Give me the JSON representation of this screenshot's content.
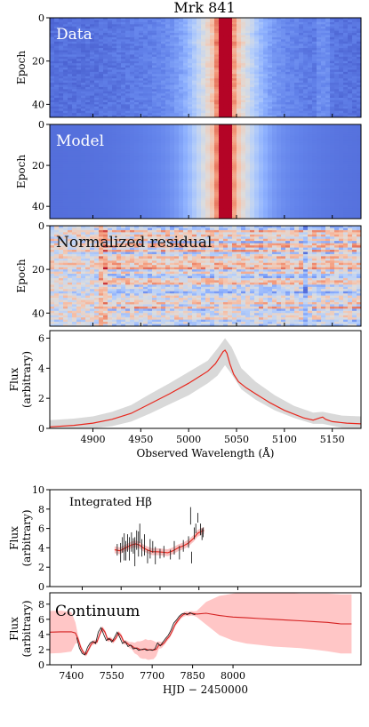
{
  "figure": {
    "title": "Mrk 841"
  },
  "chart_data": [
    {
      "type": "heatmap",
      "label": "Data",
      "ylabel": "Epoch",
      "yticks": [
        0,
        20,
        40
      ],
      "ylim": [
        0,
        46
      ],
      "xlim": [
        4855,
        5180
      ],
      "colormap": "coolwarm",
      "line_center": 5038
    },
    {
      "type": "heatmap",
      "label": "Model",
      "ylabel": "Epoch",
      "yticks": [
        0,
        20,
        40
      ],
      "ylim": [
        0,
        46
      ],
      "xlim": [
        4855,
        5180
      ],
      "colormap": "coolwarm",
      "line_center": 5038
    },
    {
      "type": "heatmap",
      "label": "Normalized residual",
      "ylabel": "Epoch",
      "yticks": [
        0,
        20,
        40
      ],
      "ylim": [
        0,
        46
      ],
      "xlim": [
        4855,
        5180
      ],
      "colormap": "coolwarm"
    },
    {
      "type": "line",
      "ylabel_line1": "Flux",
      "ylabel_line2": "(arbitrary)",
      "xlabel": "Observed Wavelength (Å)",
      "xlim": [
        4855,
        5180
      ],
      "ylim": [
        0,
        6.5
      ],
      "xticks": [
        4900,
        4950,
        5000,
        5050,
        5100,
        5150
      ],
      "yticks": [
        0,
        2,
        4,
        6
      ],
      "mean_spectrum": {
        "x": [
          4855,
          4880,
          4900,
          4920,
          4940,
          4960,
          4980,
          5000,
          5010,
          5020,
          5028,
          5033,
          5036,
          5038,
          5040,
          5043,
          5047,
          5052,
          5060,
          5070,
          5085,
          5100,
          5120,
          5130,
          5137,
          5140,
          5143,
          5150,
          5165,
          5180
        ],
        "y": [
          0.1,
          0.2,
          0.35,
          0.6,
          1.0,
          1.65,
          2.3,
          3.0,
          3.4,
          3.8,
          4.3,
          4.8,
          5.1,
          5.2,
          5.0,
          4.3,
          3.6,
          3.1,
          2.7,
          2.3,
          1.7,
          1.2,
          0.7,
          0.55,
          0.7,
          0.75,
          0.6,
          0.45,
          0.35,
          0.3
        ]
      },
      "rms_band": {
        "x": [
          4855,
          4880,
          4900,
          4920,
          4940,
          4960,
          4980,
          5000,
          5020,
          5030,
          5038,
          5045,
          5055,
          5070,
          5090,
          5110,
          5130,
          5140,
          5160,
          5180
        ],
        "upper": [
          0.55,
          0.65,
          0.8,
          1.1,
          1.55,
          2.3,
          3.0,
          3.75,
          4.5,
          5.3,
          6.0,
          5.4,
          4.0,
          3.1,
          2.2,
          1.5,
          1.05,
          1.1,
          0.85,
          0.8
        ],
        "lower": [
          0.0,
          0.0,
          0.0,
          0.15,
          0.45,
          1.0,
          1.6,
          2.2,
          3.0,
          3.5,
          4.2,
          3.6,
          2.6,
          1.9,
          1.2,
          0.7,
          0.3,
          0.3,
          0.05,
          0.0
        ]
      }
    },
    {
      "type": "scatter",
      "annotation": "Integrated Hβ",
      "ylabel_line1": "Flux",
      "ylabel_line2": "(arbitrary)",
      "xlim": [
        7275,
        8475
      ],
      "ylim": [
        0,
        10
      ],
      "yticks": [
        0,
        2,
        4,
        6,
        8,
        10
      ],
      "points": [
        {
          "x": 7535,
          "y": 3.8,
          "e": 0.6
        },
        {
          "x": 7548,
          "y": 3.5,
          "e": 1.0
        },
        {
          "x": 7555,
          "y": 4.3,
          "e": 0.8
        },
        {
          "x": 7562,
          "y": 4.1,
          "e": 1.4
        },
        {
          "x": 7568,
          "y": 3.7,
          "e": 1.0
        },
        {
          "x": 7575,
          "y": 4.5,
          "e": 0.9
        },
        {
          "x": 7582,
          "y": 3.9,
          "e": 1.2
        },
        {
          "x": 7590,
          "y": 4.6,
          "e": 1.0
        },
        {
          "x": 7597,
          "y": 4.2,
          "e": 0.8
        },
        {
          "x": 7603,
          "y": 3.6,
          "e": 1.5
        },
        {
          "x": 7610,
          "y": 4.8,
          "e": 1.0
        },
        {
          "x": 7617,
          "y": 4.4,
          "e": 1.3
        },
        {
          "x": 7622,
          "y": 5.5,
          "e": 1.0
        },
        {
          "x": 7630,
          "y": 4.0,
          "e": 0.9
        },
        {
          "x": 7640,
          "y": 4.3,
          "e": 1.1
        },
        {
          "x": 7652,
          "y": 3.1,
          "e": 0.7
        },
        {
          "x": 7662,
          "y": 3.9,
          "e": 1.0
        },
        {
          "x": 7672,
          "y": 4.1,
          "e": 0.6
        },
        {
          "x": 7682,
          "y": 3.2,
          "e": 0.9
        },
        {
          "x": 7700,
          "y": 3.4,
          "e": 0.5
        },
        {
          "x": 7715,
          "y": 3.6,
          "e": 0.6
        },
        {
          "x": 7740,
          "y": 3.3,
          "e": 0.5
        },
        {
          "x": 7755,
          "y": 4.0,
          "e": 0.7
        },
        {
          "x": 7775,
          "y": 3.5,
          "e": 0.7
        },
        {
          "x": 7790,
          "y": 4.2,
          "e": 0.6
        },
        {
          "x": 7810,
          "y": 4.6,
          "e": 0.6
        },
        {
          "x": 7818,
          "y": 7.3,
          "e": 0.9
        },
        {
          "x": 7822,
          "y": 3.0,
          "e": 0.6
        },
        {
          "x": 7832,
          "y": 5.5,
          "e": 0.6
        },
        {
          "x": 7838,
          "y": 6.0,
          "e": 0.5
        },
        {
          "x": 7846,
          "y": 7.1,
          "e": 0.5
        },
        {
          "x": 7856,
          "y": 5.9,
          "e": 0.6
        },
        {
          "x": 7862,
          "y": 5.4,
          "e": 0.6
        },
        {
          "x": 7866,
          "y": 5.6,
          "e": 0.5
        }
      ],
      "model": {
        "x": [
          7525,
          7545,
          7560,
          7575,
          7590,
          7605,
          7620,
          7635,
          7650,
          7670,
          7690,
          7710,
          7730,
          7750,
          7770,
          7790,
          7810,
          7830,
          7845,
          7860,
          7870
        ],
        "y": [
          3.8,
          3.7,
          3.9,
          4.1,
          4.3,
          4.4,
          4.3,
          4.0,
          3.8,
          3.6,
          3.6,
          3.55,
          3.5,
          3.7,
          4.0,
          4.2,
          4.5,
          5.0,
          5.5,
          5.7,
          5.8
        ],
        "err": 0.35
      }
    },
    {
      "type": "line",
      "annotation": "Continuum",
      "ylabel_line1": "Flux",
      "ylabel_line2": "(arbitrary)",
      "xlabel": "HJD − 2450000",
      "xlim": [
        7320,
        8475
      ],
      "ylim": [
        0,
        9.5
      ],
      "xticks": [
        7400,
        7550,
        7700,
        7850,
        8000
      ],
      "yticks": [
        0,
        2,
        4,
        6,
        8
      ],
      "data_x": [
        7420,
        7430,
        7440,
        7450,
        7460,
        7470,
        7480,
        7490,
        7500,
        7510,
        7520,
        7530,
        7540,
        7550,
        7560,
        7570,
        7580,
        7590,
        7600,
        7610,
        7620,
        7630,
        7640,
        7650,
        7660,
        7670,
        7680,
        7690,
        7700,
        7710,
        7720,
        7730,
        7740,
        7750,
        7760,
        7770,
        7780,
        7790,
        7800,
        7810,
        7820,
        7830,
        7840,
        7850,
        7860
      ],
      "data_y": [
        3.6,
        2.2,
        1.5,
        1.3,
        2.3,
        2.9,
        3.1,
        2.8,
        4.3,
        4.9,
        4.0,
        3.2,
        3.5,
        3.0,
        3.6,
        4.3,
        3.6,
        2.8,
        3.1,
        2.4,
        2.6,
        2.1,
        2.2,
        1.9,
        2.0,
        2.1,
        1.9,
        2.0,
        1.9,
        2.1,
        2.9,
        2.5,
        3.0,
        3.5,
        3.9,
        4.6,
        5.5,
        5.9,
        6.4,
        6.7,
        6.8,
        6.6,
        6.9,
        6.7,
        6.6
      ],
      "model": {
        "x": [
          7320,
          7360,
          7400,
          7415,
          7425,
          7435,
          7445,
          7455,
          7465,
          7475,
          7485,
          7495,
          7505,
          7515,
          7525,
          7535,
          7545,
          7555,
          7565,
          7575,
          7585,
          7595,
          7605,
          7615,
          7625,
          7635,
          7645,
          7655,
          7665,
          7675,
          7685,
          7695,
          7705,
          7715,
          7725,
          7735,
          7745,
          7755,
          7765,
          7775,
          7785,
          7795,
          7805,
          7815,
          7825,
          7835,
          7845,
          7855,
          7865,
          7900,
          7950,
          8000,
          8050,
          8100,
          8150,
          8200,
          8250,
          8300,
          8350,
          8400,
          8440
        ],
        "y": [
          4.3,
          4.35,
          4.35,
          4.2,
          3.4,
          2.3,
          1.6,
          1.4,
          2.1,
          2.8,
          3.0,
          3.0,
          4.0,
          4.8,
          4.3,
          3.3,
          3.4,
          3.1,
          3.5,
          4.2,
          3.8,
          3.0,
          2.9,
          2.6,
          2.5,
          2.2,
          2.2,
          2.0,
          2.0,
          2.1,
          1.95,
          2.0,
          1.95,
          2.05,
          2.6,
          2.6,
          2.9,
          3.4,
          3.8,
          4.5,
          5.3,
          5.8,
          6.3,
          6.6,
          6.75,
          6.7,
          6.8,
          6.75,
          6.7,
          6.8,
          6.5,
          6.3,
          6.2,
          6.1,
          6.0,
          5.9,
          5.8,
          5.7,
          5.6,
          5.4,
          5.4
        ],
        "err": [
          2.8,
          2.8,
          2.6,
          1.4,
          0.5,
          0.4,
          0.3,
          0.3,
          0.3,
          0.3,
          0.3,
          0.3,
          0.3,
          0.3,
          0.3,
          0.3,
          0.3,
          0.3,
          0.3,
          0.3,
          0.3,
          0.3,
          0.3,
          0.4,
          0.5,
          0.7,
          0.9,
          1.1,
          1.2,
          1.3,
          1.3,
          1.3,
          1.2,
          0.9,
          0.5,
          0.4,
          0.3,
          0.3,
          0.3,
          0.3,
          0.3,
          0.3,
          0.3,
          0.3,
          0.3,
          0.3,
          0.3,
          0.3,
          0.4,
          1.5,
          2.6,
          3.1,
          3.4,
          3.5,
          3.6,
          3.6,
          3.6,
          3.7,
          3.8,
          3.9,
          3.9
        ]
      }
    }
  ]
}
